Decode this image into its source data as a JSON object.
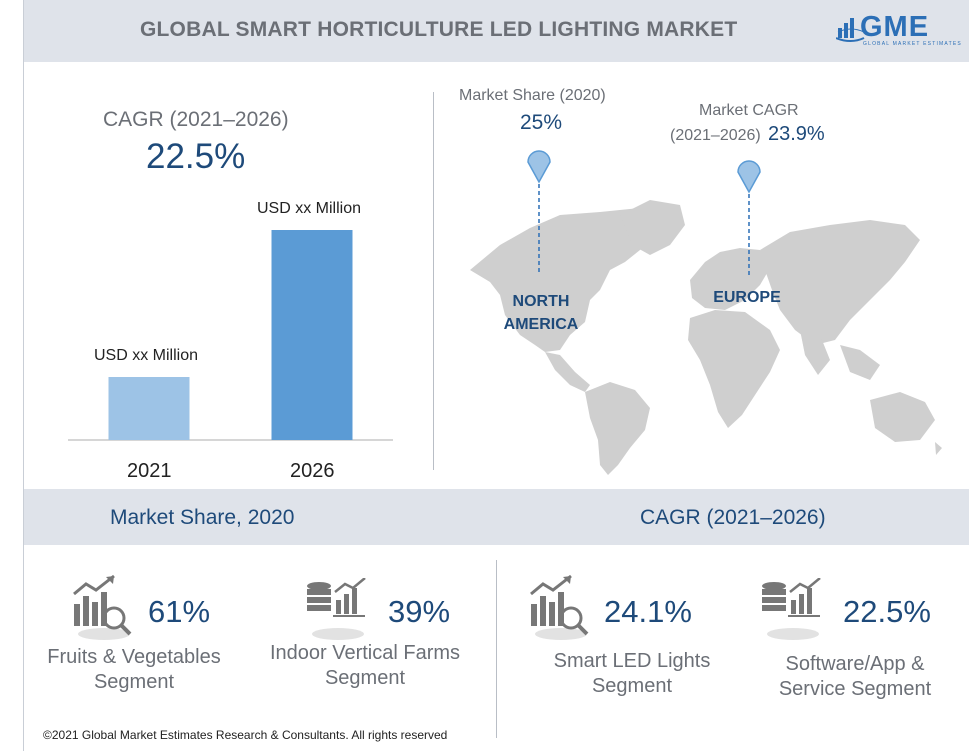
{
  "header": {
    "title": "GLOBAL SMART HORTICULTURE LED LIGHTING MARKET",
    "logo_text": "GME",
    "logo_subtext": "GLOBAL MARKET ESTIMATES"
  },
  "cagr_panel": {
    "title": "CAGR (2021–2026)",
    "value": "22.5%"
  },
  "chart_data": {
    "type": "bar",
    "categories": [
      "2021",
      "2026"
    ],
    "data_labels": [
      "USD xx Million",
      "USD xx Million"
    ],
    "values": [
      0.3,
      1.0
    ],
    "colors": [
      "#9dc3e6",
      "#5b9bd5"
    ]
  },
  "map": {
    "north_america": {
      "pin_label": "Market Share (2020)",
      "pin_value": "25%",
      "region_line1": "NORTH",
      "region_line2": "AMERICA"
    },
    "europe": {
      "pin_label_line1": "Market CAGR",
      "pin_label_line2": "(2021–2026)",
      "pin_value": "23.9%",
      "region": "EUROPE"
    }
  },
  "band": {
    "left_title": "Market Share, 2020",
    "right_title": "CAGR (2021–2026)"
  },
  "stats": [
    {
      "value": "61%",
      "label_line1": "Fruits & Vegetables",
      "label_line2": "Segment",
      "icon": "chart-magnifier-icon"
    },
    {
      "value": "39%",
      "label_line1": "Indoor Vertical Farms",
      "label_line2": "Segment",
      "icon": "database-chart-icon"
    },
    {
      "value": "24.1%",
      "label_line1": "Smart LED Lights",
      "label_line2": "Segment",
      "icon": "chart-magnifier-icon"
    },
    {
      "value": "22.5%",
      "label_line1": "Software/App &",
      "label_line2": "Service Segment",
      "icon": "database-chart-icon"
    }
  ],
  "footer": {
    "text": "©2021 Global Market Estimates Research & Consultants. All rights reserved"
  }
}
